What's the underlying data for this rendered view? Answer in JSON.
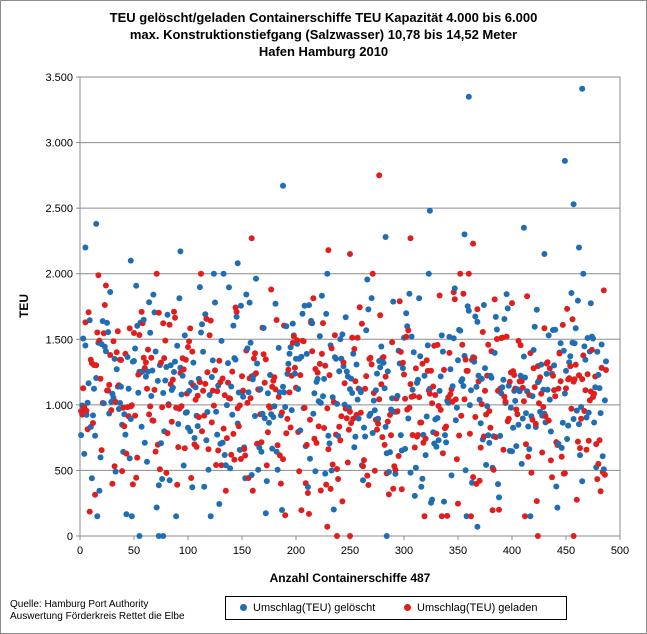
{
  "chart_data": {
    "type": "scatter",
    "title_lines": [
      "TEU gelöscht/geladen Containerschiffe TEU Kapazität 4.000 bis 6.000",
      "max. Konstruktionstiefgang (Salzwasser) 10,78 bis 14,52 Meter",
      "Hafen Hamburg 2010"
    ],
    "xlabel": "Anzahl Containerschiffe 487",
    "ylabel": "TEU",
    "xlim": [
      0,
      500
    ],
    "ylim": [
      0,
      3500
    ],
    "x_ticks": [
      0,
      50,
      100,
      150,
      200,
      250,
      300,
      350,
      400,
      450,
      500
    ],
    "y_ticks": [
      0,
      500,
      1000,
      1500,
      2000,
      2500,
      3000,
      3500
    ],
    "y_tick_labels": [
      "0",
      "500",
      "1.000",
      "1.500",
      "2.000",
      "2.500",
      "3.000",
      "3.500"
    ],
    "grid": "horizontal",
    "legend_position": "bottom",
    "point_count": 487,
    "series": [
      {
        "name": "Umschlag(TEU) gelöscht",
        "color": "#1f6eb4",
        "notable_points": [
          [
            5,
            2200
          ],
          [
            15,
            2380
          ],
          [
            47,
            2100
          ],
          [
            93,
            2170
          ],
          [
            146,
            2080
          ],
          [
            188,
            2670
          ],
          [
            283,
            2280
          ],
          [
            324,
            2480
          ],
          [
            356,
            2300
          ],
          [
            360,
            3350
          ],
          [
            411,
            2350
          ],
          [
            430,
            2150
          ],
          [
            449,
            2860
          ],
          [
            457,
            2530
          ],
          [
            462,
            2200
          ],
          [
            465,
            3410
          ],
          [
            55,
            0
          ],
          [
            73,
            0
          ],
          [
            77,
            0
          ],
          [
            284,
            0
          ],
          [
            368,
            70
          ]
        ]
      },
      {
        "name": "Umschlag(TEU) geladen",
        "color": "#e01e1e",
        "notable_points": [
          [
            159,
            2270
          ],
          [
            230,
            2180
          ],
          [
            250,
            2150
          ],
          [
            277,
            2750
          ],
          [
            306,
            2270
          ],
          [
            364,
            2230
          ],
          [
            229,
            70
          ],
          [
            238,
            0
          ],
          [
            250,
            0
          ],
          [
            424,
            0
          ],
          [
            457,
            0
          ]
        ]
      }
    ]
  },
  "source": {
    "line1": "Quelle: Hamburg Port Authority",
    "line2": "Auswertung Förderkreis Rettet die Elbe"
  },
  "legend": {
    "item1": "Umschlag(TEU) gelöscht",
    "item2": "Umschlag(TEU) geladen"
  }
}
